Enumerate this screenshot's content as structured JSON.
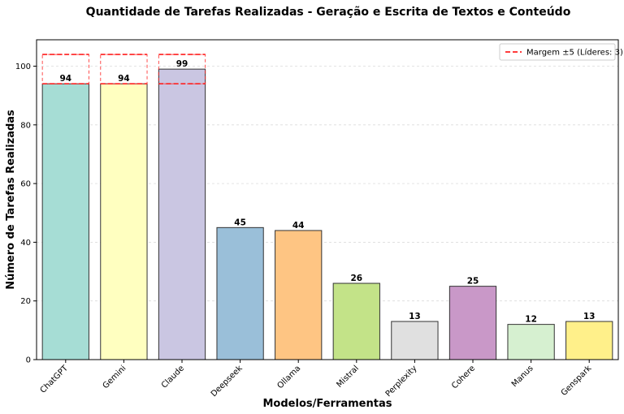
{
  "chart_data": {
    "type": "bar",
    "title": "Quantidade de Tarefas Realizadas - Geração e Escrita de Textos e Conteúdo",
    "xlabel": "Modelos/Ferramentas",
    "ylabel": "Número de Tarefas Realizadas",
    "ylim": [
      0,
      109
    ],
    "yticks": [
      "0",
      "20",
      "40",
      "60",
      "80",
      "100"
    ],
    "grid": "horizontal-dashed",
    "categories": [
      "ChatGPT",
      "Gemini",
      "Claude",
      "Deepseek",
      "Ollama",
      "Mistral",
      "Perplexity",
      "Cohere",
      "Manus",
      "Genspark"
    ],
    "values": [
      94,
      94,
      99,
      45,
      44,
      26,
      13,
      25,
      12,
      13
    ],
    "data_labels": [
      "94",
      "94",
      "99",
      "45",
      "44",
      "26",
      "13",
      "25",
      "12",
      "13"
    ],
    "bar_colors": [
      "#a6ddd5",
      "#ffffc0",
      "#cac6e2",
      "#9abfd9",
      "#fec583",
      "#c3e388",
      "#e0e0e0",
      "#c998c8",
      "#d6f0d0",
      "#fff08a"
    ],
    "margin_highlight": {
      "indices": [
        0,
        1,
        2
      ],
      "low": 94,
      "high": 104,
      "color": "#ff2020"
    },
    "legend": {
      "position": "top-right",
      "entry": "Margem ±5 (Líderes: 3)"
    }
  }
}
